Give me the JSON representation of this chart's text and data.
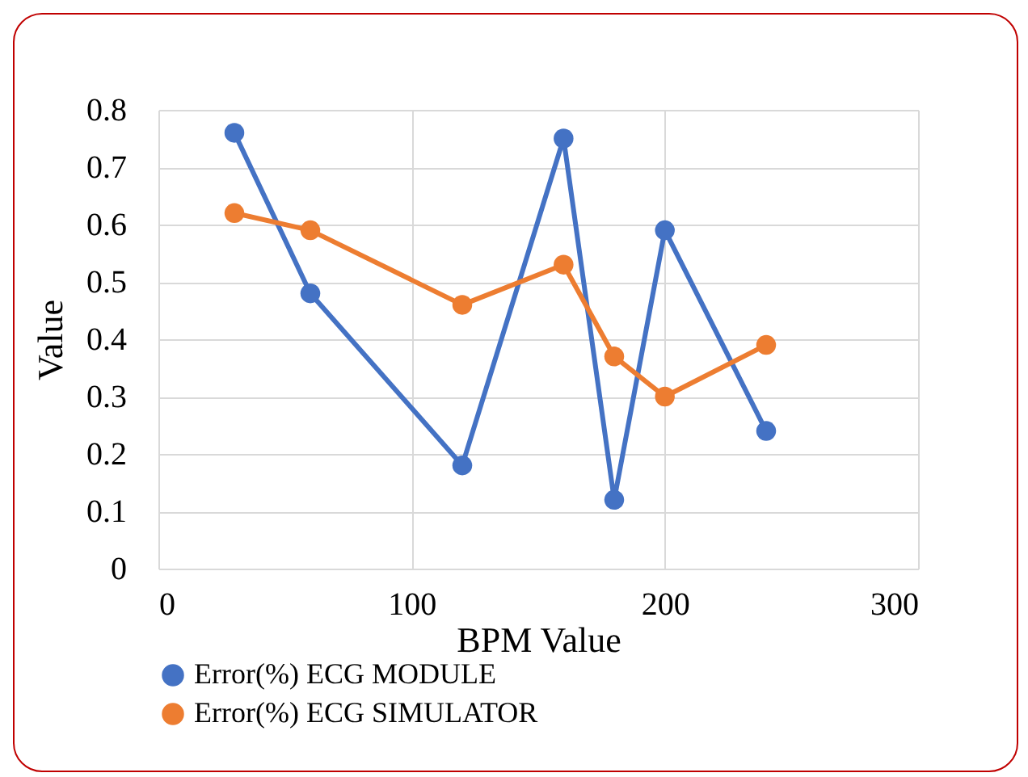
{
  "chart_data": {
    "type": "line",
    "xlabel": "BPM Value",
    "ylabel": "Value",
    "x": [
      30,
      60,
      120,
      160,
      180,
      200,
      240
    ],
    "series": [
      {
        "name": "Error(%) ECG MODULE",
        "color": "#4472c4",
        "values": [
          0.76,
          0.48,
          0.18,
          0.75,
          0.12,
          0.59,
          0.24
        ]
      },
      {
        "name": "Error(%) ECG SIMULATOR",
        "color": "#ed7d31",
        "values": [
          0.62,
          0.59,
          0.46,
          0.53,
          0.37,
          0.3,
          0.39
        ]
      }
    ],
    "xlim": [
      0,
      300
    ],
    "xticks": [
      0,
      100,
      200,
      300
    ],
    "ylim": [
      0,
      0.8
    ],
    "yticks": [
      0,
      0.1,
      0.2,
      0.3,
      0.4,
      0.5,
      0.6,
      0.7,
      0.8
    ],
    "grid": true,
    "legend": "bottom",
    "marker": "circle",
    "line_style": "solid"
  }
}
